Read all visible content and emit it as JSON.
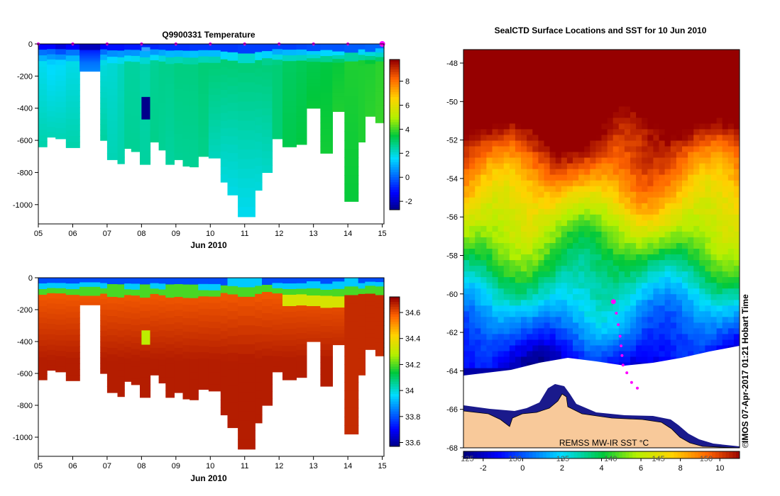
{
  "chart_data": [
    {
      "type": "heatmap",
      "title": "Q9900331  Temperature",
      "xlabel": "Jun 2010",
      "x_ticks": [
        "05",
        "06",
        "07",
        "08",
        "09",
        "10",
        "11",
        "12",
        "13",
        "14",
        "15"
      ],
      "xlim": [
        5,
        15.05
      ],
      "y_ticks": [
        "0",
        "-200",
        "-400",
        "-600",
        "-800",
        "-1000"
      ],
      "ylim": [
        0,
        -1120
      ],
      "colorbar_ticks": [
        "-2",
        "0",
        "2",
        "4",
        "6",
        "8"
      ],
      "colorbar_range": [
        -2.7,
        9.8
      ],
      "profiles": [
        {
          "start": 5.0,
          "end": 5.25,
          "max_depth": 640,
          "surface": 0.0,
          "mid": 1.8,
          "deep": 2.5
        },
        {
          "start": 5.25,
          "end": 5.5,
          "max_depth": 580,
          "surface": 0.0,
          "mid": 1.6,
          "deep": 2.4
        },
        {
          "start": 5.5,
          "end": 5.8,
          "max_depth": 590,
          "surface": -0.4,
          "mid": 1.7,
          "deep": 2.4
        },
        {
          "start": 5.8,
          "end": 6.2,
          "max_depth": 645,
          "surface": 0.0,
          "mid": 1.9,
          "deep": 2.5
        },
        {
          "start": 6.2,
          "end": 6.8,
          "max_depth": 170,
          "surface": -0.8,
          "mid": 0.3,
          "deep": 0.6
        },
        {
          "start": 6.8,
          "end": 7.0,
          "max_depth": 600,
          "surface": 0.0,
          "mid": 2.0,
          "deep": 2.6
        },
        {
          "start": 7.0,
          "end": 7.3,
          "max_depth": 720,
          "surface": 0.2,
          "mid": 2.1,
          "deep": 2.4
        },
        {
          "start": 7.3,
          "end": 7.5,
          "max_depth": 745,
          "surface": 0.2,
          "mid": 2.3,
          "deep": 2.5
        },
        {
          "start": 7.5,
          "end": 7.7,
          "max_depth": 650,
          "surface": 0.3,
          "mid": 2.6,
          "deep": 2.7
        },
        {
          "start": 7.7,
          "end": 7.95,
          "max_depth": 670,
          "surface": 0.3,
          "mid": 2.6,
          "deep": 2.7
        },
        {
          "start": 7.95,
          "end": 8.25,
          "max_depth": 750,
          "surface": 0.5,
          "mid": 2.5,
          "deep": 2.6
        },
        {
          "start": 8.25,
          "end": 8.5,
          "max_depth": 610,
          "surface": 0.5,
          "mid": 2.7,
          "deep": 2.8
        },
        {
          "start": 8.5,
          "end": 8.7,
          "max_depth": 660,
          "surface": 0.6,
          "mid": 2.8,
          "deep": 2.7
        },
        {
          "start": 8.7,
          "end": 8.95,
          "max_depth": 750,
          "surface": 0.6,
          "mid": 2.8,
          "deep": 2.6
        },
        {
          "start": 8.95,
          "end": 9.2,
          "max_depth": 720,
          "surface": 0.6,
          "mid": 2.9,
          "deep": 2.7
        },
        {
          "start": 9.2,
          "end": 9.4,
          "max_depth": 760,
          "surface": 0.6,
          "mid": 2.9,
          "deep": 2.7
        },
        {
          "start": 9.4,
          "end": 9.65,
          "max_depth": 765,
          "surface": 0.7,
          "mid": 2.9,
          "deep": 2.7
        },
        {
          "start": 9.65,
          "end": 9.95,
          "max_depth": 700,
          "surface": 0.7,
          "mid": 3.0,
          "deep": 2.8
        },
        {
          "start": 9.95,
          "end": 10.3,
          "max_depth": 710,
          "surface": 0.7,
          "mid": 3.0,
          "deep": 2.3
        },
        {
          "start": 10.3,
          "end": 10.5,
          "max_depth": 860,
          "surface": 0.7,
          "mid": 3.0,
          "deep": 2.0
        },
        {
          "start": 10.5,
          "end": 10.8,
          "max_depth": 940,
          "surface": 0.7,
          "mid": 3.0,
          "deep": 1.9
        },
        {
          "start": 10.8,
          "end": 11.3,
          "max_depth": 1075,
          "surface": 0.8,
          "mid": 3.0,
          "deep": 1.8
        },
        {
          "start": 11.3,
          "end": 11.5,
          "max_depth": 910,
          "surface": 0.8,
          "mid": 3.0,
          "deep": 2.0
        },
        {
          "start": 11.5,
          "end": 11.8,
          "max_depth": 800,
          "surface": 0.8,
          "mid": 3.0,
          "deep": 2.2
        },
        {
          "start": 11.8,
          "end": 12.1,
          "max_depth": 590,
          "surface": 0.8,
          "mid": 3.0,
          "deep": 3.0
        },
        {
          "start": 12.1,
          "end": 12.5,
          "max_depth": 640,
          "surface": 0.8,
          "mid": 3.2,
          "deep": 3.4
        },
        {
          "start": 12.5,
          "end": 12.8,
          "max_depth": 625,
          "surface": 0.9,
          "mid": 3.3,
          "deep": 3.5
        },
        {
          "start": 12.8,
          "end": 13.2,
          "max_depth": 400,
          "surface": 1.0,
          "mid": 3.4,
          "deep": 3.6
        },
        {
          "start": 13.2,
          "end": 13.55,
          "max_depth": 680,
          "surface": 1.1,
          "mid": 3.5,
          "deep": 3.7
        },
        {
          "start": 13.55,
          "end": 13.9,
          "max_depth": 420,
          "surface": 1.1,
          "mid": 3.6,
          "deep": 3.8
        },
        {
          "start": 13.9,
          "end": 14.3,
          "max_depth": 980,
          "surface": 1.2,
          "mid": 3.8,
          "deep": 3.6
        },
        {
          "start": 14.3,
          "end": 14.5,
          "max_depth": 610,
          "surface": 1.2,
          "mid": 3.8,
          "deep": 3.8
        },
        {
          "start": 14.5,
          "end": 14.8,
          "max_depth": 450,
          "surface": 1.3,
          "mid": 3.8,
          "deep": 3.9
        },
        {
          "start": 14.8,
          "end": 15.05,
          "max_depth": 490,
          "surface": 1.3,
          "mid": 3.9,
          "deep": 4.0
        }
      ],
      "surface_markers": [
        5.0,
        6.0,
        7.0,
        8.0,
        9.0,
        10.0,
        11.0,
        12.0,
        13.0,
        14.0,
        15.0
      ],
      "last_marker": 15.0
    },
    {
      "type": "heatmap",
      "title": "",
      "xlabel": "Jun 2010",
      "x_ticks": [
        "05",
        "06",
        "07",
        "08",
        "09",
        "10",
        "11",
        "12",
        "13",
        "14",
        "15"
      ],
      "xlim": [
        5,
        15.05
      ],
      "y_ticks": [
        "0",
        "-200",
        "-400",
        "-600",
        "-800",
        "-1000"
      ],
      "ylim": [
        0,
        -1120
      ],
      "colorbar_ticks": [
        "33.6",
        "33.8",
        "34",
        "34.2",
        "34.4",
        "34.6"
      ],
      "colorbar_range": [
        33.57,
        34.72
      ],
      "profiles_ref": "same depth coverage as temperature panel",
      "surface_salinity": 33.85,
      "deep_salinity": 34.68,
      "anomaly": {
        "day": 8.1,
        "depth_from": 330,
        "depth_to": 420,
        "value": 34.3
      }
    },
    {
      "type": "heatmap",
      "title": "SealCTD Surface Locations and SST for 10 Jun 2010",
      "y_ticks": [
        "-48",
        "-50",
        "-52",
        "-54",
        "-56",
        "-58",
        "-60",
        "-62",
        "-64",
        "-66",
        "-68"
      ],
      "ylim": [
        -68,
        -47.3
      ],
      "lon_ticks": [
        "125",
        "130",
        "135",
        "140",
        "145",
        "150"
      ],
      "colorbar_ticks": [
        "-2",
        "0",
        "2",
        "4",
        "6",
        "8",
        "10"
      ],
      "colorbar_range": [
        -3,
        11
      ],
      "source_label": "REMSS MW-IR SST °C",
      "side_label": "IMOS 07-Apr-2017 01:21 Hobart Time",
      "copyright": "©",
      "seal_track": [
        {
          "lon": 140.3,
          "lat": -60.4
        },
        {
          "lon": 140.6,
          "lat": -61.0
        },
        {
          "lon": 140.8,
          "lat": -61.6
        },
        {
          "lon": 141.0,
          "lat": -62.2
        },
        {
          "lon": 141.1,
          "lat": -62.7
        },
        {
          "lon": 141.2,
          "lat": -63.2
        },
        {
          "lon": 141.3,
          "lat": -63.7
        },
        {
          "lon": 141.7,
          "lat": -64.1
        },
        {
          "lon": 142.2,
          "lat": -64.6
        },
        {
          "lon": 142.8,
          "lat": -64.9
        }
      ]
    }
  ]
}
